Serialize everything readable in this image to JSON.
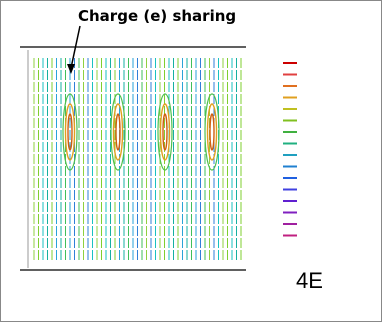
{
  "annotation": {
    "text": "Charge (e) sharing"
  },
  "label": {
    "text": "4E"
  }
}
